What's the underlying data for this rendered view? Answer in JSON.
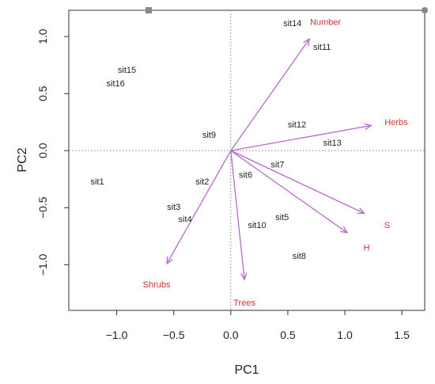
{
  "chart_data": {
    "type": "scatter",
    "subtype": "pca-biplot",
    "title": "",
    "xlabel": "PC1",
    "ylabel": "PC2",
    "xlim": [
      -1.42,
      1.7
    ],
    "ylim": [
      -1.4,
      1.23
    ],
    "x_ticks": [
      -1.0,
      -0.5,
      0.0,
      0.5,
      1.0,
      1.5
    ],
    "x_tick_labels": [
      "−1.0",
      "−0.5",
      "0.0",
      "0.5",
      "1.0",
      "1.5"
    ],
    "y_ticks": [
      -1.0,
      -0.5,
      0.0,
      0.5,
      1.0
    ],
    "y_tick_labels": [
      "−1.0",
      "−0.5",
      "0.0",
      "0.5",
      "1.0"
    ],
    "grid": false,
    "reference_lines": {
      "x": 0,
      "y": 0,
      "style": "dotted"
    },
    "sites": [
      {
        "label": "sit1",
        "x": -1.17,
        "y": -0.27
      },
      {
        "label": "sit2",
        "x": -0.25,
        "y": -0.27
      },
      {
        "label": "sit3",
        "x": -0.5,
        "y": -0.49
      },
      {
        "label": "sit4",
        "x": -0.4,
        "y": -0.6
      },
      {
        "label": "sit5",
        "x": 0.45,
        "y": -0.58
      },
      {
        "label": "sit6",
        "x": 0.13,
        "y": -0.21
      },
      {
        "label": "sit7",
        "x": 0.41,
        "y": -0.12
      },
      {
        "label": "sit8",
        "x": 0.6,
        "y": -0.92
      },
      {
        "label": "sit9",
        "x": -0.19,
        "y": 0.14
      },
      {
        "label": "sit10",
        "x": 0.23,
        "y": -0.65
      },
      {
        "label": "sit11",
        "x": 0.8,
        "y": 0.91
      },
      {
        "label": "sit12",
        "x": 0.58,
        "y": 0.23
      },
      {
        "label": "sit13",
        "x": 0.89,
        "y": 0.07
      },
      {
        "label": "sit14",
        "x": 0.54,
        "y": 1.12
      },
      {
        "label": "sit15",
        "x": -0.91,
        "y": 0.71
      },
      {
        "label": "sit16",
        "x": -1.01,
        "y": 0.59
      }
    ],
    "vectors": [
      {
        "name": "Number",
        "x": 0.69,
        "y": 0.98,
        "label_x": 0.83,
        "label_y": 1.13
      },
      {
        "name": "Herbs",
        "x": 1.23,
        "y": 0.22,
        "label_x": 1.45,
        "label_y": 0.25
      },
      {
        "name": "S",
        "x": 1.17,
        "y": -0.55,
        "label_x": 1.37,
        "label_y": -0.65
      },
      {
        "name": "H",
        "x": 1.02,
        "y": -0.72,
        "label_x": 1.19,
        "label_y": -0.85
      },
      {
        "name": "Trees",
        "x": 0.12,
        "y": -1.13,
        "label_x": 0.12,
        "label_y": -1.33
      },
      {
        "name": "Shrubs",
        "x": -0.56,
        "y": -0.99,
        "label_x": -0.65,
        "label_y": -1.17
      }
    ],
    "colors": {
      "vector": "#b36bc9",
      "vector_label": "#cc3333",
      "site_label": "#222222",
      "axis": "#333333"
    }
  }
}
